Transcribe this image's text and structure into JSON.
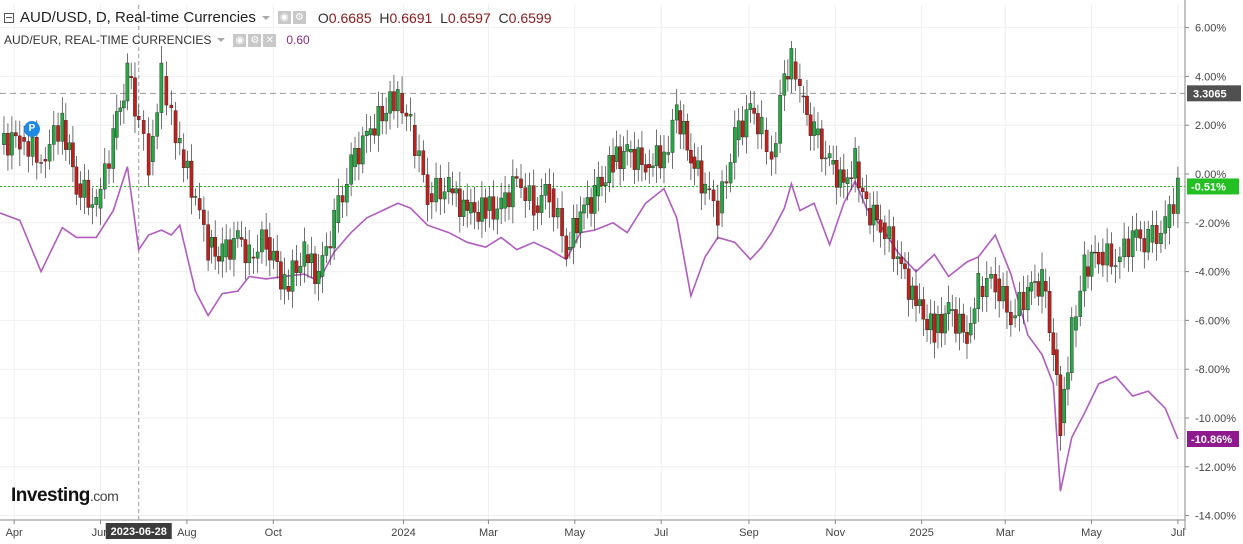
{
  "header": {
    "symbol_title": "AUD/USD, D, Real-time Currencies",
    "open_label": "O",
    "open": "0.6685",
    "high_label": "H",
    "high": "0.6691",
    "low_label": "L",
    "low": "0.6597",
    "close_label": "C",
    "close": "0.6599"
  },
  "compare": {
    "title": "AUD/EUR, REAL-TIME CURRENCIES",
    "value": "0.60"
  },
  "marker": {
    "label": "P"
  },
  "logo": {
    "brand": "Investing",
    "suffix": ".com"
  },
  "colors": {
    "up": "#27a844",
    "down": "#c0211c",
    "compare_line": "#b15cc0",
    "price_line": "#22c022",
    "compare_badge": "#8e1a8e",
    "ref_badge": "#505050"
  },
  "chart_data": {
    "type": "line",
    "title": "AUD/USD, D, Real-time Currencies",
    "y_axis": {
      "unit": "percent",
      "range": [
        -14,
        7
      ],
      "ticks": [
        "6.00%",
        "4.00%",
        "2.00%",
        "0.00%",
        "-2.00%",
        "-4.00%",
        "-6.00%",
        "-8.00%",
        "-10.00%",
        "-12.00%",
        "-14.00%"
      ],
      "tick_values": [
        6,
        4,
        2,
        0,
        -2,
        -4,
        -6,
        -8,
        -10,
        -12,
        -14
      ],
      "position": "right"
    },
    "x_axis": {
      "ticks": [
        "Apr",
        "Jun",
        "Aug",
        "Oct",
        "2024",
        "Mar",
        "May",
        "Jul",
        "Sep",
        "Nov",
        "2025",
        "Mar",
        "May",
        "Jul"
      ],
      "tick_dates": [
        "2023-04-01",
        "2023-06-01",
        "2023-08-01",
        "2023-10-01",
        "2024-01-01",
        "2024-03-01",
        "2024-05-01",
        "2024-07-01",
        "2024-09-01",
        "2024-11-01",
        "2025-01-01",
        "2025-03-01",
        "2025-05-01",
        "2025-07-01"
      ],
      "range": [
        "2023-03-22",
        "2025-07-06"
      ],
      "crosshair_label": "2023-06-28",
      "crosshair_date": "2023-06-28"
    },
    "grid": true,
    "series": [
      {
        "name": "AUD/USD",
        "style": "candlestick",
        "points": [
          [
            "2023-03-22",
            1.2
          ],
          [
            "2023-04-05",
            1.5
          ],
          [
            "2023-04-20",
            0.6
          ],
          [
            "2023-05-05",
            2.2
          ],
          [
            "2023-05-15",
            -0.4
          ],
          [
            "2023-05-29",
            -1.4
          ],
          [
            "2023-06-10",
            1.5
          ],
          [
            "2023-06-20",
            4.0
          ],
          [
            "2023-06-28",
            2.2
          ],
          [
            "2023-07-05",
            0.5
          ],
          [
            "2023-07-14",
            4.0
          ],
          [
            "2023-07-21",
            2.6
          ],
          [
            "2023-07-27",
            1.0
          ],
          [
            "2023-08-07",
            -1.0
          ],
          [
            "2023-08-16",
            -3.0
          ],
          [
            "2023-08-26",
            -3.4
          ],
          [
            "2023-09-06",
            -2.6
          ],
          [
            "2023-09-14",
            -3.4
          ],
          [
            "2023-09-26",
            -2.6
          ],
          [
            "2023-10-09",
            -4.6
          ],
          [
            "2023-10-23",
            -3.3
          ],
          [
            "2023-11-02",
            -4.2
          ],
          [
            "2023-11-13",
            -2.0
          ],
          [
            "2023-11-25",
            0.3
          ],
          [
            "2023-12-06",
            1.6
          ],
          [
            "2023-12-28",
            3.3
          ],
          [
            "2024-01-06",
            2.0
          ],
          [
            "2024-01-18",
            -0.8
          ],
          [
            "2024-02-02",
            -0.6
          ],
          [
            "2024-02-15",
            -1.6
          ],
          [
            "2024-02-28",
            -1.5
          ],
          [
            "2024-03-10",
            -1.4
          ],
          [
            "2024-03-21",
            -0.2
          ],
          [
            "2024-04-02",
            -1.3
          ],
          [
            "2024-04-13",
            -0.6
          ],
          [
            "2024-04-25",
            -3.1
          ],
          [
            "2024-05-05",
            -1.6
          ],
          [
            "2024-05-15",
            -0.9
          ],
          [
            "2024-05-28",
            0.5
          ],
          [
            "2024-06-07",
            0.9
          ],
          [
            "2024-06-20",
            0.4
          ],
          [
            "2024-07-03",
            0.8
          ],
          [
            "2024-07-12",
            2.6
          ],
          [
            "2024-07-22",
            0.7
          ],
          [
            "2024-08-01",
            -0.6
          ],
          [
            "2024-08-10",
            -1.6
          ],
          [
            "2024-08-22",
            1.4
          ],
          [
            "2024-09-02",
            2.7
          ],
          [
            "2024-09-10",
            1.8
          ],
          [
            "2024-09-17",
            0.7
          ],
          [
            "2024-09-26",
            4.0
          ],
          [
            "2024-10-01",
            4.6
          ],
          [
            "2024-10-07",
            3.2
          ],
          [
            "2024-10-17",
            1.6
          ],
          [
            "2024-10-28",
            0.4
          ],
          [
            "2024-11-07",
            -0.4
          ],
          [
            "2024-11-15",
            0.5
          ],
          [
            "2024-11-23",
            -1.4
          ],
          [
            "2024-12-03",
            -2.0
          ],
          [
            "2024-12-15",
            -3.4
          ],
          [
            "2024-12-28",
            -5.4
          ],
          [
            "2025-01-10",
            -6.5
          ],
          [
            "2025-01-20",
            -5.6
          ],
          [
            "2025-02-02",
            -6.6
          ],
          [
            "2025-02-10",
            -4.6
          ],
          [
            "2025-02-22",
            -4.3
          ],
          [
            "2025-03-05",
            -5.9
          ],
          [
            "2025-03-17",
            -4.8
          ],
          [
            "2025-03-27",
            -4.4
          ],
          [
            "2025-04-04",
            -7.2
          ],
          [
            "2025-04-09",
            -10.2
          ],
          [
            "2025-04-17",
            -6.4
          ],
          [
            "2025-04-26",
            -3.8
          ],
          [
            "2025-05-06",
            -3.2
          ],
          [
            "2025-05-18",
            -3.6
          ],
          [
            "2025-05-30",
            -2.6
          ],
          [
            "2025-06-10",
            -2.8
          ],
          [
            "2025-06-22",
            -2.2
          ],
          [
            "2025-07-01",
            -0.51
          ]
        ]
      },
      {
        "name": "AUD/EUR",
        "style": "line",
        "points": [
          [
            "2023-03-22",
            -1.6
          ],
          [
            "2023-04-05",
            -1.9
          ],
          [
            "2023-04-20",
            -4.0
          ],
          [
            "2023-05-05",
            -2.2
          ],
          [
            "2023-05-15",
            -2.6
          ],
          [
            "2023-05-29",
            -2.6
          ],
          [
            "2023-06-10",
            -1.5
          ],
          [
            "2023-06-20",
            0.3
          ],
          [
            "2023-06-28",
            -3.1
          ],
          [
            "2023-07-05",
            -2.5
          ],
          [
            "2023-07-14",
            -2.3
          ],
          [
            "2023-07-21",
            -2.5
          ],
          [
            "2023-07-27",
            -2.1
          ],
          [
            "2023-08-07",
            -4.8
          ],
          [
            "2023-08-16",
            -5.8
          ],
          [
            "2023-08-26",
            -4.9
          ],
          [
            "2023-09-06",
            -4.8
          ],
          [
            "2023-09-14",
            -4.2
          ],
          [
            "2023-09-26",
            -4.3
          ],
          [
            "2023-10-09",
            -4.2
          ],
          [
            "2023-10-23",
            -4.1
          ],
          [
            "2023-11-02",
            -4.4
          ],
          [
            "2023-11-13",
            -3.2
          ],
          [
            "2023-11-25",
            -2.4
          ],
          [
            "2023-12-06",
            -1.8
          ],
          [
            "2023-12-28",
            -1.2
          ],
          [
            "2024-01-06",
            -1.4
          ],
          [
            "2024-01-18",
            -2.1
          ],
          [
            "2024-02-02",
            -2.4
          ],
          [
            "2024-02-15",
            -2.8
          ],
          [
            "2024-02-28",
            -3.0
          ],
          [
            "2024-03-10",
            -2.6
          ],
          [
            "2024-03-21",
            -3.1
          ],
          [
            "2024-04-02",
            -2.8
          ],
          [
            "2024-04-13",
            -3.1
          ],
          [
            "2024-04-25",
            -3.5
          ],
          [
            "2024-05-05",
            -2.4
          ],
          [
            "2024-05-15",
            -2.3
          ],
          [
            "2024-05-28",
            -2.0
          ],
          [
            "2024-06-07",
            -2.4
          ],
          [
            "2024-06-20",
            -1.2
          ],
          [
            "2024-07-03",
            -0.6
          ],
          [
            "2024-07-12",
            -1.8
          ],
          [
            "2024-07-22",
            -5.0
          ],
          [
            "2024-08-01",
            -3.4
          ],
          [
            "2024-08-10",
            -2.6
          ],
          [
            "2024-08-22",
            -2.8
          ],
          [
            "2024-09-02",
            -3.5
          ],
          [
            "2024-09-10",
            -3.0
          ],
          [
            "2024-09-17",
            -2.4
          ],
          [
            "2024-09-26",
            -1.4
          ],
          [
            "2024-10-01",
            -0.4
          ],
          [
            "2024-10-07",
            -1.5
          ],
          [
            "2024-10-17",
            -1.2
          ],
          [
            "2024-10-28",
            -2.9
          ],
          [
            "2024-11-07",
            -1.2
          ],
          [
            "2024-11-15",
            -0.3
          ],
          [
            "2024-11-23",
            -1.4
          ],
          [
            "2024-12-03",
            -2.1
          ],
          [
            "2024-12-15",
            -3.2
          ],
          [
            "2024-12-28",
            -4.0
          ],
          [
            "2025-01-10",
            -3.3
          ],
          [
            "2025-01-20",
            -4.2
          ],
          [
            "2025-02-02",
            -3.6
          ],
          [
            "2025-02-10",
            -3.4
          ],
          [
            "2025-02-22",
            -2.5
          ],
          [
            "2025-03-05",
            -4.1
          ],
          [
            "2025-03-17",
            -6.6
          ],
          [
            "2025-03-27",
            -7.4
          ],
          [
            "2025-04-04",
            -8.6
          ],
          [
            "2025-04-09",
            -13.0
          ],
          [
            "2025-04-17",
            -10.8
          ],
          [
            "2025-04-26",
            -9.8
          ],
          [
            "2025-05-06",
            -8.6
          ],
          [
            "2025-05-18",
            -8.3
          ],
          [
            "2025-05-30",
            -9.1
          ],
          [
            "2025-06-10",
            -8.9
          ],
          [
            "2025-06-22",
            -9.6
          ],
          [
            "2025-07-01",
            -10.86
          ]
        ]
      }
    ],
    "reference_lines": [
      {
        "value": 3.3065,
        "label": "3.3065",
        "style": "dashed"
      },
      {
        "value": -0.51,
        "label": "-0.51%",
        "style": "dotted"
      }
    ],
    "badges": [
      {
        "value": -0.51,
        "label": "-0.51%"
      },
      {
        "value": -10.86,
        "label": "-10.86%"
      }
    ]
  }
}
